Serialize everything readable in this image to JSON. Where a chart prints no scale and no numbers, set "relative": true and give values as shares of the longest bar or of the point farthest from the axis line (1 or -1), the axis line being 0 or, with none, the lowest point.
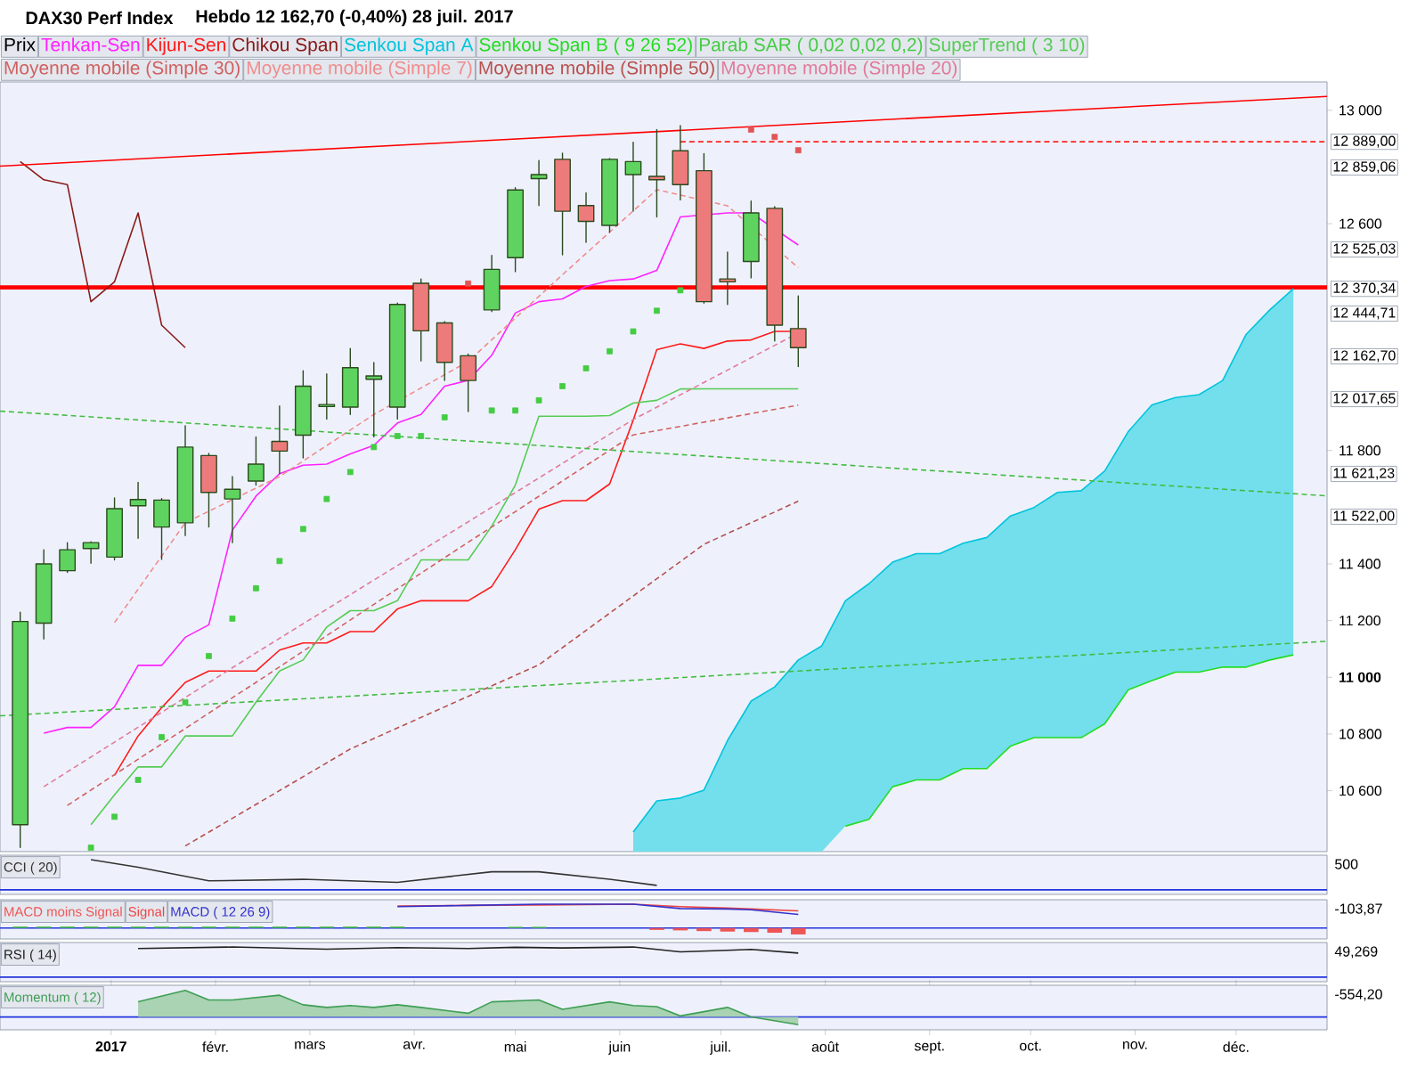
{
  "chart_data": [
    {
      "type": "candlestick",
      "title": "DAX30 Perf Index",
      "subtitle": "Hebdo   12 162,70 (-0,40%)   28 juil. 2017",
      "legend_title": "Prix",
      "legend": "top left",
      "tick_labels": "y",
      "x": [
        "2016-12-05",
        "2016-12-12",
        "2016-12-19",
        "2016-12-26",
        "2017-01-02",
        "2017-01-09",
        "2017-01-16",
        "2017-01-23",
        "2017-01-30",
        "2017-02-06",
        "2017-02-13",
        "2017-02-20",
        "2017-02-27",
        "2017-03-06",
        "2017-03-13",
        "2017-03-20",
        "2017-03-27",
        "2017-04-03",
        "2017-04-10",
        "2017-04-17",
        "2017-04-24",
        "2017-05-01",
        "2017-05-08",
        "2017-05-15",
        "2017-05-22",
        "2017-05-29",
        "2017-06-05",
        "2017-06-12",
        "2017-06-19",
        "2017-06-26",
        "2017-07-03",
        "2017-07-10",
        "2017-07-17",
        "2017-07-24"
      ],
      "ohlc": [
        [
          10480,
          11230,
          10400,
          11197
        ],
        [
          11191,
          11450,
          11135,
          11400
        ],
        [
          11376,
          11475,
          11370,
          11450
        ],
        [
          11454,
          11478,
          11402,
          11475
        ],
        [
          11424,
          11633,
          11414,
          11595
        ],
        [
          11605,
          11688,
          11490,
          11627
        ],
        [
          11530,
          11630,
          11416,
          11625
        ],
        [
          11545,
          11887,
          11500,
          11812
        ],
        [
          11782,
          11790,
          11530,
          11652
        ],
        [
          11629,
          11708,
          11475,
          11663
        ],
        [
          11692,
          11848,
          11678,
          11752
        ],
        [
          11832,
          11957,
          11718,
          11798
        ],
        [
          11854,
          12081,
          11774,
          12027
        ],
        [
          11955,
          12070,
          11911,
          11962
        ],
        [
          11953,
          12160,
          11927,
          12092
        ],
        [
          12051,
          12110,
          11848,
          12063
        ],
        [
          11953,
          12320,
          11911,
          12315
        ],
        [
          12390,
          12405,
          12116,
          12222
        ],
        [
          12250,
          12255,
          12047,
          12111
        ],
        [
          12134,
          12140,
          11937,
          12047
        ],
        [
          12296,
          12488,
          12290,
          12439
        ],
        [
          12480,
          12727,
          12431,
          12719
        ],
        [
          12759,
          12823,
          12664,
          12773
        ],
        [
          12827,
          12849,
          12490,
          12644
        ],
        [
          12664,
          12709,
          12534,
          12608
        ],
        [
          12594,
          12830,
          12570,
          12827
        ],
        [
          12773,
          12887,
          12644,
          12819
        ],
        [
          12767,
          12932,
          12624,
          12755
        ],
        [
          12857,
          12946,
          12684,
          12738
        ],
        [
          12787,
          12847,
          12320,
          12325
        ],
        [
          12405,
          12500,
          12315,
          12395
        ],
        [
          12467,
          12680,
          12409,
          12638
        ],
        [
          12654,
          12660,
          12186,
          12242
        ],
        [
          12230,
          12345,
          12096,
          12162.7
        ]
      ],
      "colors": [
        "#5fd35f",
        "#5fd35f",
        "#5fd35f",
        "#5fd35f",
        "#5fd35f",
        "#5fd35f",
        "#5fd35f",
        "#5fd35f",
        "#ee7b7b",
        "#5fd35f",
        "#5fd35f",
        "#ee7b7b",
        "#5fd35f",
        "#5fd35f",
        "#5fd35f",
        "#5fd35f",
        "#5fd35f",
        "#ee7b7b",
        "#ee7b7b",
        "#ee7b7b",
        "#5fd35f",
        "#5fd35f",
        "#5fd35f",
        "#ee7b7b",
        "#ee7b7b",
        "#5fd35f",
        "#5fd35f",
        "#ee7b7b",
        "#ee7b7b",
        "#ee7b7b",
        "#ee7b7b",
        "#5fd35f",
        "#ee7b7b",
        "#ee7b7b"
      ],
      "series": [
        {
          "name": "Tenkan-Sen",
          "type": "line",
          "color": "#ff22ff",
          "x": [
            "2016-12-12",
            "2016-12-19",
            "2016-12-26",
            "2017-01-02",
            "2017-01-09",
            "2017-01-16",
            "2017-01-23",
            "2017-01-30",
            "2017-02-06",
            "2017-02-13",
            "2017-02-20",
            "2017-02-27",
            "2017-03-06",
            "2017-03-13",
            "2017-03-20",
            "2017-03-27",
            "2017-04-03",
            "2017-04-10",
            "2017-04-17",
            "2017-04-24",
            "2017-05-01",
            "2017-05-08",
            "2017-05-15",
            "2017-05-22",
            "2017-05-29",
            "2017-06-05",
            "2017-06-12",
            "2017-06-19",
            "2017-07-03",
            "2017-07-10",
            "2017-07-24"
          ],
          "values": [
            10803,
            10823,
            10823,
            10896,
            11042,
            11042,
            11141,
            11185,
            11519,
            11639,
            11718,
            11748,
            11752,
            11788,
            11818,
            11897,
            11927,
            12027,
            12047,
            12136,
            12285,
            12325,
            12335,
            12379,
            12399,
            12405,
            12435,
            12624,
            12638,
            12638,
            12525.03
          ]
        },
        {
          "name": "Kijun-Sen",
          "type": "line",
          "color": "#ff1a1a",
          "x": [
            "2017-01-02",
            "2017-01-09",
            "2017-01-16",
            "2017-01-23",
            "2017-01-30",
            "2017-02-06",
            "2017-02-13",
            "2017-02-20",
            "2017-02-27",
            "2017-03-06",
            "2017-03-13",
            "2017-03-20",
            "2017-03-27",
            "2017-04-03",
            "2017-04-10",
            "2017-04-17",
            "2017-04-24",
            "2017-05-01",
            "2017-05-08",
            "2017-05-15",
            "2017-05-22",
            "2017-05-29",
            "2017-06-05",
            "2017-06-12",
            "2017-06-19",
            "2017-06-26",
            "2017-07-03",
            "2017-07-10",
            "2017-07-17",
            "2017-07-24"
          ],
          "values": [
            10654,
            10793,
            10893,
            10982,
            11022,
            11022,
            11022,
            11096,
            11121,
            11121,
            11161,
            11161,
            11241,
            11270,
            11270,
            11270,
            11320,
            11450,
            11593,
            11623,
            11623,
            11682,
            11907,
            12156,
            12176,
            12160,
            12186,
            12190,
            12220,
            12220
          ]
        },
        {
          "name": "Chikou Span",
          "type": "line",
          "color": "#8b1a1a",
          "x": [
            "2016-12-05",
            "2016-12-12",
            "2016-12-19",
            "2016-12-26",
            "2017-01-02",
            "2017-01-09",
            "2017-01-16",
            "2017-01-23"
          ],
          "values": [
            12819,
            12755,
            12738,
            12325,
            12395,
            12638,
            12242,
            12162.7
          ]
        },
        {
          "name": "Senkou Span A",
          "type": "area",
          "color": "#00c4dc",
          "x": [
            "2017-06-05",
            "2017-06-12",
            "2017-06-19",
            "2017-06-26",
            "2017-07-03",
            "2017-07-10",
            "2017-07-17",
            "2017-07-24",
            "2017-07-31",
            "2017-08-07",
            "2017-08-14",
            "2017-08-21",
            "2017-08-28",
            "2017-09-04",
            "2017-09-11",
            "2017-09-18",
            "2017-09-25",
            "2017-10-02",
            "2017-10-09",
            "2017-10-16",
            "2017-10-23",
            "2017-10-30",
            "2017-11-06",
            "2017-11-13",
            "2017-11-20",
            "2017-11-27",
            "2017-12-04",
            "2017-12-11",
            "2017-12-18"
          ],
          "values": [
            10454,
            10564,
            10574,
            10602,
            10777,
            10916,
            10966,
            11061,
            11111,
            11270,
            11330,
            11406,
            11436,
            11436,
            11473,
            11493,
            11569,
            11599,
            11652,
            11658,
            11728,
            11867,
            11961,
            11987,
            11997,
            12047,
            12210,
            12296,
            12370.34
          ]
        },
        {
          "name": "Senkou Span B ( 9 26 52)",
          "type": "line",
          "color": "#22dd22",
          "x": [
            "2017-08-07",
            "2017-08-14",
            "2017-08-21",
            "2017-08-28",
            "2017-09-04",
            "2017-09-11",
            "2017-09-18",
            "2017-09-25",
            "2017-10-02",
            "2017-10-09",
            "2017-10-16",
            "2017-10-23",
            "2017-10-30",
            "2017-11-06",
            "2017-11-13",
            "2017-11-20",
            "2017-11-27",
            "2017-12-04",
            "2017-12-11",
            "2017-12-18"
          ],
          "values": [
            10475,
            10499,
            10614,
            10638,
            10638,
            10678,
            10678,
            10757,
            10787,
            10787,
            10787,
            10836,
            10956,
            10988,
            11018,
            11018,
            11036,
            11036,
            11061,
            11079
          ]
        },
        {
          "name": "Parab SAR ( 0,02 0,02 0,2)",
          "type": "scatter",
          "marker": "square",
          "color": "#44cc44",
          "x": [
            "2016-12-26",
            "2017-01-02",
            "2017-01-09",
            "2017-01-16",
            "2017-01-23",
            "2017-01-30",
            "2017-02-06",
            "2017-02-13",
            "2017-02-20",
            "2017-02-27",
            "2017-03-06",
            "2017-03-13",
            "2017-03-20",
            "2017-03-27",
            "2017-04-03",
            "2017-04-10",
            "2017-04-17",
            "2017-04-24",
            "2017-05-01",
            "2017-05-08",
            "2017-05-15",
            "2017-05-22",
            "2017-05-29",
            "2017-06-05",
            "2017-06-12",
            "2017-06-19"
          ],
          "values": [
            10399,
            10508,
            10638,
            10789,
            10912,
            11075,
            11207,
            11314,
            11410,
            11523,
            11629,
            11724,
            11812,
            11851,
            11851,
            11917,
            null,
            11941,
            11941,
            11977,
            12027,
            12090,
            12150,
            12220,
            12293,
            12365
          ]
        },
        {
          "name": "SuperTrend ( 3 10)",
          "type": "line",
          "color": "#55cc55",
          "x": [
            "2016-12-26",
            "2017-01-02",
            "2017-01-09",
            "2017-01-16",
            "2017-01-23",
            "2017-01-30",
            "2017-02-06",
            "2017-02-13",
            "2017-02-20",
            "2017-02-27",
            "2017-03-06",
            "2017-03-13",
            "2017-03-20",
            "2017-03-27",
            "2017-04-03",
            "2017-04-10",
            "2017-04-17",
            "2017-04-24",
            "2017-05-01",
            "2017-05-08",
            "2017-05-15",
            "2017-05-22",
            "2017-05-29",
            "2017-06-05",
            "2017-06-12",
            "2017-06-19",
            "2017-06-26",
            "2017-07-03",
            "2017-07-10",
            "2017-07-17",
            "2017-07-24"
          ],
          "values": [
            10480,
            10585,
            10684,
            10684,
            10793,
            10793,
            10793,
            10912,
            11022,
            11061,
            11177,
            11235,
            11235,
            11270,
            11414,
            11414,
            11414,
            11533,
            11678,
            11921,
            11921,
            11921,
            11923,
            11967,
            11977,
            12017,
            12017.65,
            12017.65,
            12017.65,
            12017.65,
            12017.65
          ]
        },
        {
          "name": "Moyenne mobile (Simple 30)",
          "type": "line",
          "color": "#d06060",
          "line_style": "dashed",
          "x": [
            "2016-12-19",
            "2017-02-13",
            "2017-04-10",
            "2017-06-05",
            "2017-07-24"
          ],
          "values": [
            10548,
            10982,
            11422,
            11855,
            11960
          ]
        },
        {
          "name": "Moyenne mobile (Simple 7)",
          "type": "line",
          "color": "#f08c8c",
          "line_style": "dashed",
          "x": [
            "2017-01-02",
            "2017-01-23",
            "2017-02-20",
            "2017-03-20",
            "2017-04-17",
            "2017-05-15",
            "2017-06-12",
            "2017-07-03",
            "2017-07-24"
          ],
          "values": [
            11193,
            11545,
            11708,
            11927,
            12114,
            12420,
            12720,
            12663,
            12444.71
          ]
        },
        {
          "name": "Moyenne mobile (Simple 50)",
          "type": "line",
          "color": "#b85050",
          "line_style": "dashed",
          "x": [
            "2017-01-23",
            "2017-03-13",
            "2017-05-08",
            "2017-06-26",
            "2017-07-24"
          ],
          "values": [
            10405,
            10747,
            11044,
            11469,
            11621.23
          ]
        },
        {
          "name": "Moyenne mobile (Simple 20)",
          "type": "line",
          "color": "#e07a9a",
          "line_style": "dashed",
          "x": [
            "2016-12-12",
            "2017-02-13",
            "2017-04-10",
            "2017-06-05",
            "2017-07-24"
          ],
          "values": [
            10614,
            11086,
            11497,
            11909,
            12214.57
          ]
        },
        {
          "type": "line",
          "color": "#44bb44",
          "line_style": "dashed",
          "x": [
            "2016-11-29",
            "2017-12-28"
          ],
          "values": [
            11939,
            11640
          ]
        },
        {
          "type": "line",
          "color": "#44bb44",
          "line_style": "dashed",
          "x": [
            "2016-11-29",
            "2017-12-28"
          ],
          "values": [
            10864,
            11127
          ]
        },
        {
          "type": "line",
          "color": "#ff0000",
          "x": [
            "2016-11-29",
            "2017-12-28"
          ],
          "values": [
            12803,
            13049
          ]
        },
        {
          "type": "line",
          "color": "#ff2222",
          "line_style": "dashed",
          "x": [
            "2017-06-19",
            "2017-12-28"
          ],
          "values": [
            12889,
            12889
          ]
        },
        {
          "type": "scatter",
          "marker": "square",
          "color": "#e05555",
          "x": [
            "2017-04-17",
            "2017-07-10",
            "2017-07-17",
            "2017-07-24"
          ],
          "values": [
            12389,
            12932,
            12906,
            12859.06
          ]
        }
      ],
      "ref_lines": [
        {
          "axis": "y",
          "value": 12375,
          "color": "#ff0000"
        }
      ],
      "annotations": [
        {
          "text": "12 889,00",
          "x": "2017-12-28",
          "y": 12889
        },
        "12 859,06",
        "12 525,03",
        "12 444,71",
        {
          "text": "12 370,34",
          "x": "2017-12-18",
          "y": 12370.34
        },
        "12 162,70",
        "12 017,65",
        "11 621,23",
        "11 522,00"
      ],
      "xlim": [
        "2016-11-29",
        "2017-12-28"
      ],
      "ylim": [
        10385,
        13100
      ],
      "yticks": [
        {
          "value": 10600,
          "label": "10 600"
        },
        {
          "value": 10800,
          "label": "10 800"
        },
        {
          "value": 11000,
          "label": "**11 000**"
        },
        {
          "value": 11200,
          "label": "11 200"
        },
        {
          "value": 11400,
          "label": "11 400"
        },
        {
          "value": 11800,
          "label": "11 800"
        },
        {
          "value": 12600,
          "label": "12 600"
        },
        {
          "value": 13000,
          "label": "13 000"
        }
      ]
    },
    {
      "type": "line",
      "relative": true,
      "legend": "top left",
      "tick_labels": false,
      "xlim": [
        "2016-11-29",
        "2017-12-28"
      ],
      "series": [
        {
          "name": "CCI ( 20)",
          "color": "#333333",
          "x": [
            "2016-12-26",
            "2017-01-09",
            "2017-01-30",
            "2017-02-27",
            "2017-03-27",
            "2017-04-24",
            "2017-05-08",
            "2017-05-29",
            "2017-06-12"
          ],
          "values": [
            1,
            0.75,
            0.3,
            0.35,
            0.25,
            0.6,
            0.6,
            0.35,
            0.15
          ]
        }
      ],
      "annotations": [
        "500"
      ]
    },
    {
      "type": "line",
      "relative": true,
      "legend": "top left",
      "tick_labels": false,
      "xlim": [
        "2016-11-29",
        "2017-12-28"
      ],
      "series": [
        {
          "name": "MACD moins Signal",
          "type": "bar",
          "color": "#ee5555",
          "x": [
            "2016-12-05",
            "2016-12-12",
            "2016-12-19",
            "2016-12-26",
            "2017-01-02",
            "2017-01-09",
            "2017-01-16",
            "2017-01-23",
            "2017-01-30",
            "2017-02-06",
            "2017-02-13",
            "2017-02-20",
            "2017-02-27",
            "2017-03-06",
            "2017-03-13",
            "2017-03-20",
            "2017-03-27",
            "2017-05-01",
            "2017-05-08",
            "2017-06-12",
            "2017-06-19",
            "2017-06-26",
            "2017-07-03",
            "2017-07-10",
            "2017-07-17",
            "2017-07-24"
          ],
          "values": [
            0.06,
            0.06,
            0.06,
            0.06,
            0.06,
            0.06,
            0.06,
            0.06,
            0.06,
            0.06,
            0.06,
            0.06,
            0.06,
            0.06,
            0.06,
            0.06,
            0.06,
            0.05,
            0.05,
            -0.08,
            -0.1,
            -0.13,
            -0.15,
            -0.17,
            -0.2,
            -0.27
          ],
          "colors": [
            "#44bb44",
            "#44bb44",
            "#44bb44",
            "#44bb44",
            "#44bb44",
            "#44bb44",
            "#44bb44",
            "#44bb44",
            "#44bb44",
            "#44bb44",
            "#44bb44",
            "#44bb44",
            "#44bb44",
            "#44bb44",
            "#44bb44",
            "#44bb44",
            "#44bb44",
            "#44bb44",
            "#44bb44",
            "#ee5555",
            "#ee5555",
            "#ee5555",
            "#ee5555",
            "#ee5555",
            "#ee5555",
            "#ee5555"
          ]
        },
        {
          "name": "Signal",
          "color": "#ee4444",
          "x": [
            "2017-03-27",
            "2017-04-17",
            "2017-05-08",
            "2017-06-05",
            "2017-06-19",
            "2017-07-03",
            "2017-07-10",
            "2017-07-24"
          ],
          "values": [
            0.93,
            0.95,
            0.97,
            1,
            0.9,
            0.84,
            0.8,
            0.72
          ]
        },
        {
          "name": "MACD ( 12 26 9)",
          "color": "#3333cc",
          "x": [
            "2017-03-27",
            "2017-04-17",
            "2017-05-08",
            "2017-06-05",
            "2017-06-19",
            "2017-07-03",
            "2017-07-10",
            "2017-07-24"
          ],
          "values": [
            0.9,
            0.95,
            1,
            1,
            0.82,
            0.8,
            0.77,
            0.57
          ]
        }
      ],
      "ref_lines": [
        {
          "axis": "y",
          "value": 0,
          "color": "#2233dd"
        }
      ],
      "annotations": [
        "-103,87"
      ]
    },
    {
      "type": "line",
      "relative": true,
      "legend": "top left",
      "tick_labels": false,
      "xlim": [
        "2016-11-29",
        "2017-12-28"
      ],
      "series": [
        {
          "name": "RSI ( 14)",
          "color": "#222222",
          "x": [
            "2017-01-09",
            "2017-02-06",
            "2017-03-06",
            "2017-03-27",
            "2017-04-17",
            "2017-05-01",
            "2017-05-15",
            "2017-06-05",
            "2017-06-19",
            "2017-07-03",
            "2017-07-10",
            "2017-07-24"
          ],
          "values": [
            0.95,
            1,
            0.93,
            0.98,
            0.95,
            0.99,
            0.97,
            1,
            0.84,
            0.89,
            0.92,
            0.8
          ]
        }
      ],
      "annotations": [
        "49,269"
      ]
    },
    {
      "type": "area",
      "relative": true,
      "legend": "top left",
      "tick_labels": "x",
      "xlim": [
        "2016-11-29",
        "2017-12-28"
      ],
      "series": [
        {
          "name": "Momentum ( 12)",
          "color": "#3f9e55",
          "x": [
            "2017-01-09",
            "2017-01-23",
            "2017-01-30",
            "2017-02-06",
            "2017-02-20",
            "2017-02-27",
            "2017-03-06",
            "2017-03-13",
            "2017-03-20",
            "2017-03-27",
            "2017-04-03",
            "2017-04-17",
            "2017-04-24",
            "2017-05-08",
            "2017-05-15",
            "2017-05-29",
            "2017-06-05",
            "2017-06-12",
            "2017-06-19",
            "2017-07-03",
            "2017-07-10",
            "2017-07-24"
          ],
          "values": [
            0.57,
            1,
            0.64,
            0.64,
            0.82,
            0.46,
            0.36,
            0.43,
            0.36,
            0.46,
            0.36,
            0.14,
            0.57,
            0.64,
            0.29,
            0.57,
            0.43,
            0.39,
            0.04,
            0.36,
            0,
            -0.29
          ]
        }
      ],
      "ref_lines": [
        {
          "axis": "y",
          "value": 0,
          "color": "#2233dd"
        }
      ],
      "annotations": [
        "-554,20"
      ],
      "xticks": [
        {
          "value": "2017-01-01",
          "label": "**2017**"
        },
        {
          "value": "2017-02-01",
          "label": "févr."
        },
        {
          "value": "2017-03-01",
          "label": "mars"
        },
        {
          "value": "2017-04-01",
          "label": "avr."
        },
        {
          "value": "2017-05-01",
          "label": "mai"
        },
        {
          "value": "2017-06-01",
          "label": "juin"
        },
        {
          "value": "2017-07-01",
          "label": "juil."
        },
        {
          "value": "2017-08-01",
          "label": "août"
        },
        {
          "value": "2017-09-01",
          "label": "sept."
        },
        {
          "value": "2017-10-01",
          "label": "oct."
        },
        {
          "value": "2017-11-01",
          "label": "nov."
        },
        {
          "value": "2017-12-01",
          "label": "déc."
        }
      ]
    }
  ]
}
